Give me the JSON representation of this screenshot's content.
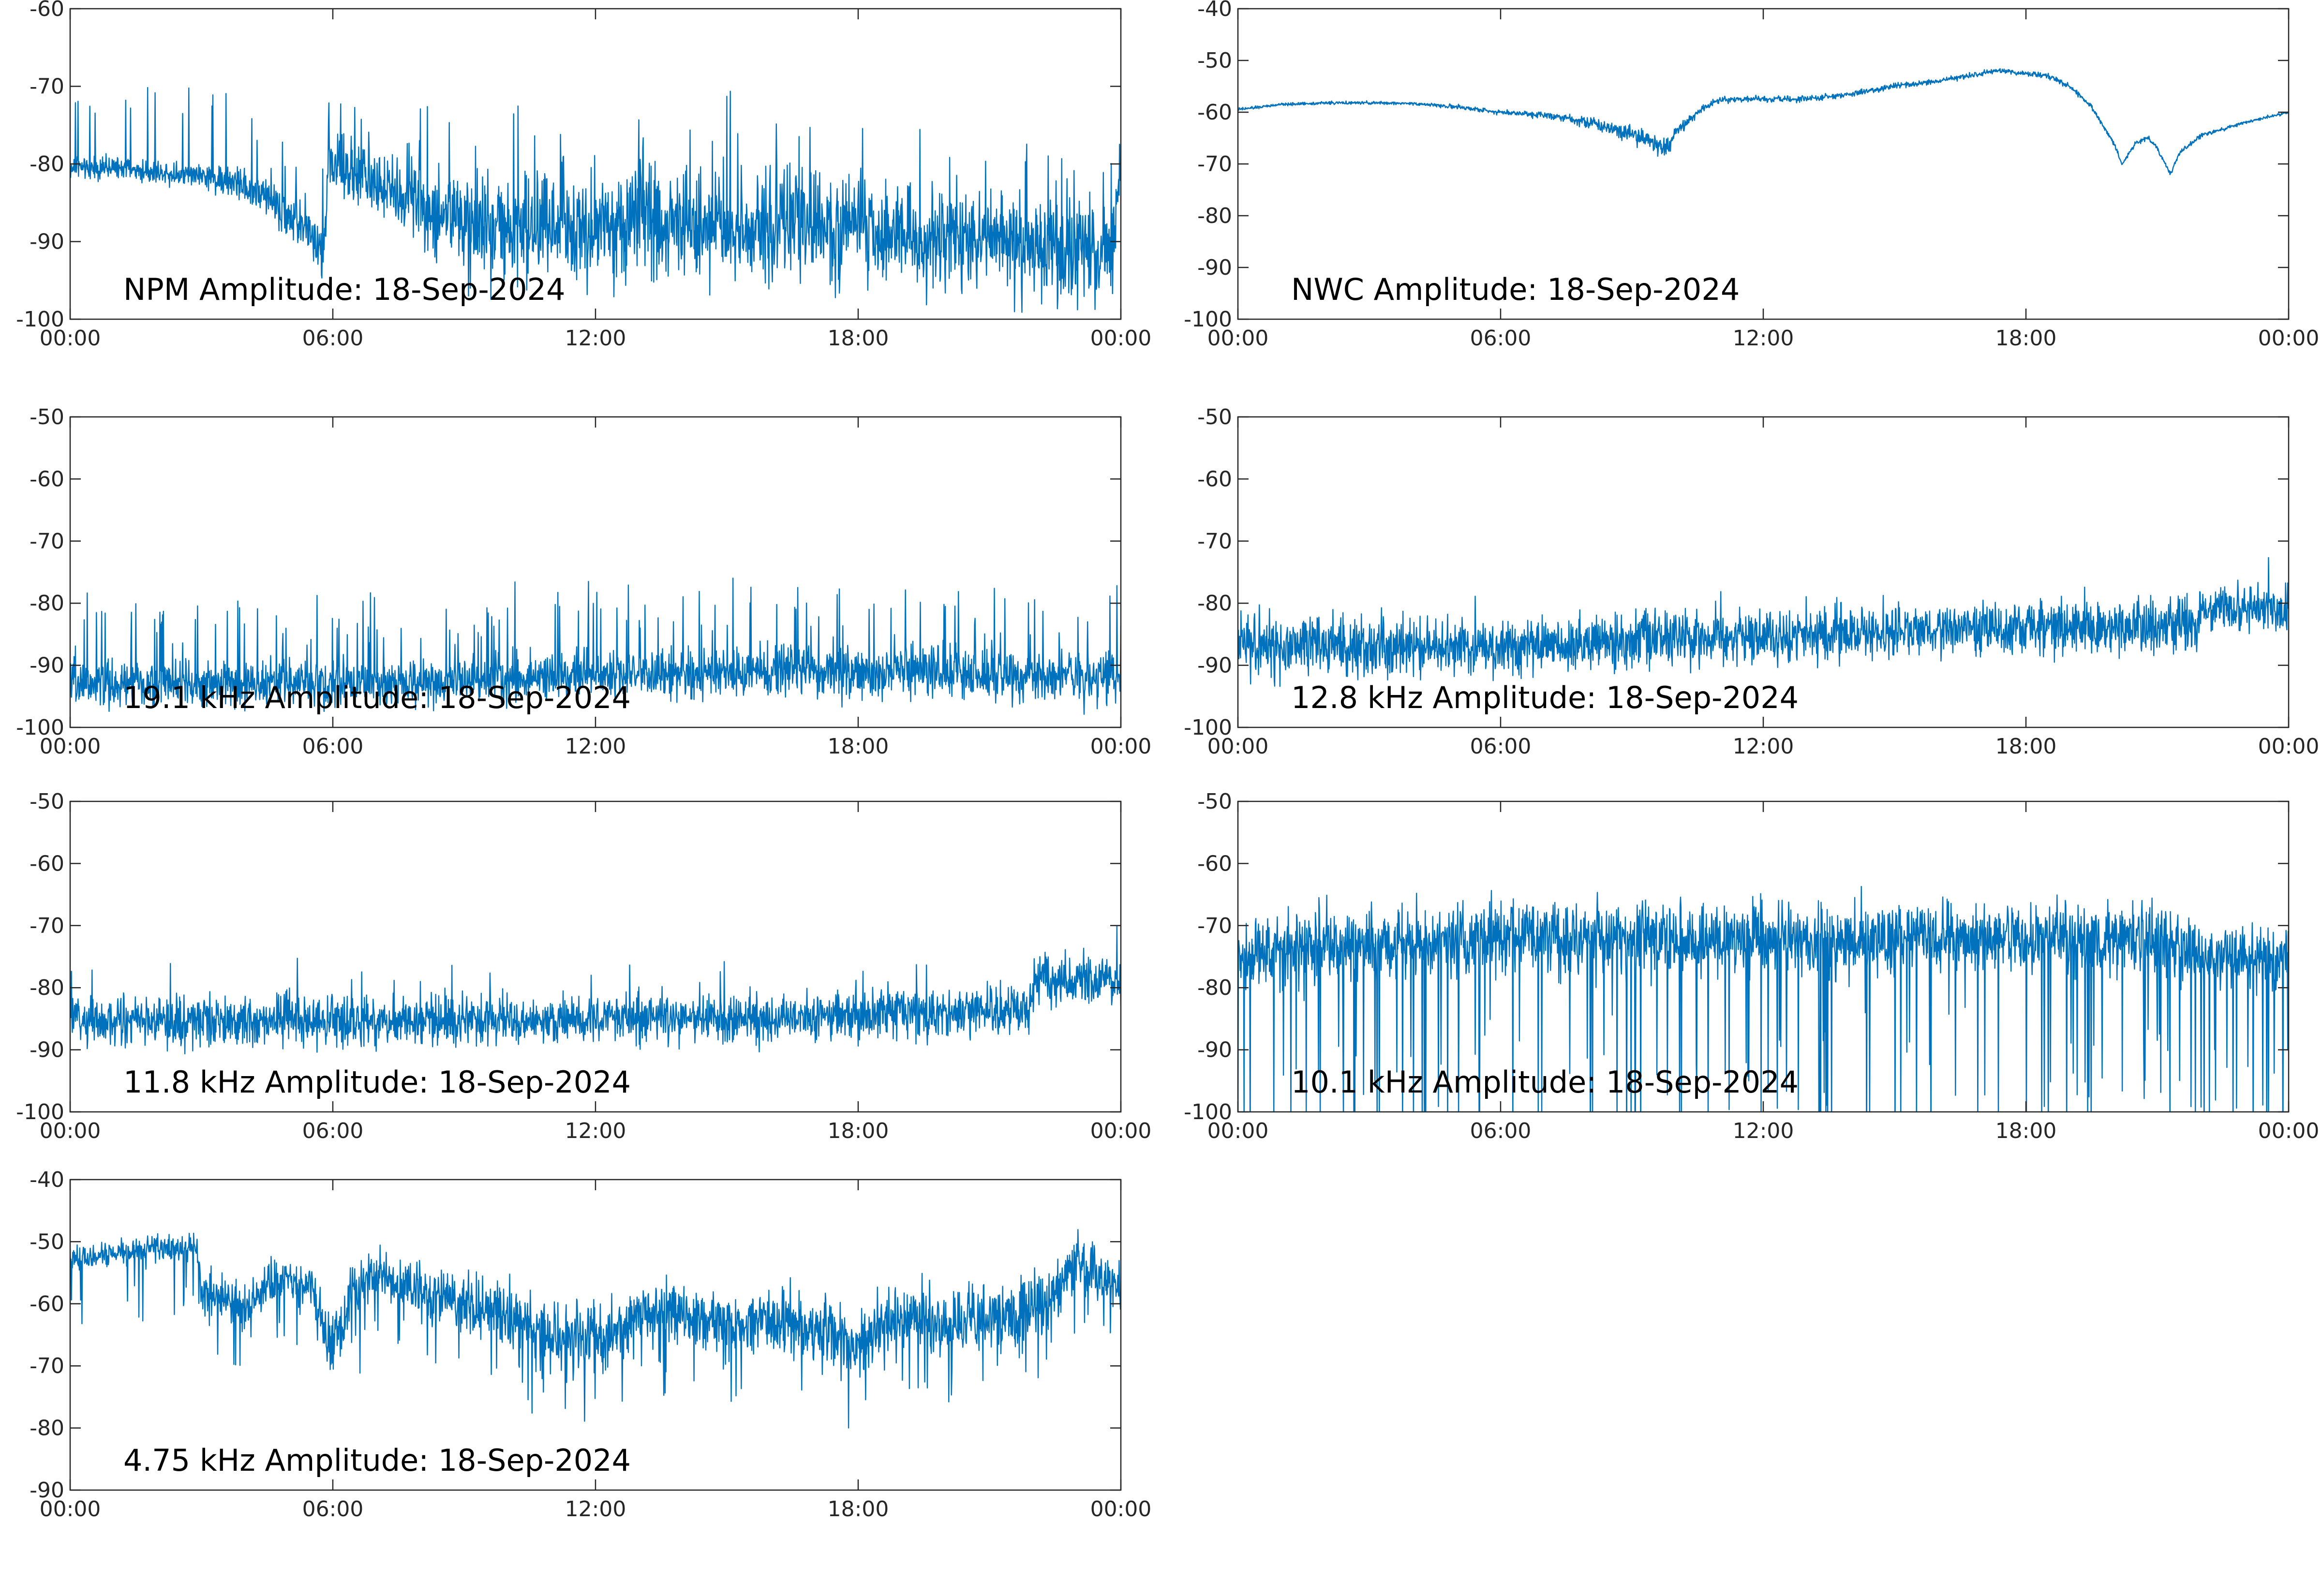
{
  "colors": {
    "trace": "#0072BD",
    "axes": "#262626",
    "background": "#ffffff"
  },
  "chart_data": [
    {
      "type": "line",
      "title": "NPM Amplitude: 18-Sep-2024",
      "xlabel": "",
      "ylabel": "",
      "xlim": [
        0,
        24
      ],
      "ylim": [
        -100,
        -60
      ],
      "xticks": [
        "00:00",
        "06:00",
        "12:00",
        "18:00",
        "00:00"
      ],
      "yticks": [
        "-60",
        "-70",
        "-80",
        "-90",
        "-100"
      ],
      "grid": false,
      "series": [
        {
          "x": [
            0,
            1,
            2,
            3,
            3.5,
            4,
            4.5,
            5,
            5.5,
            5.8,
            5.9,
            6,
            6.5,
            7,
            7.5,
            8,
            8.5,
            9,
            10,
            11,
            12,
            13,
            14,
            15,
            16,
            17,
            18,
            19,
            20,
            21,
            22,
            23,
            23.8,
            24
          ],
          "values": [
            -80.5,
            -80.5,
            -81,
            -81.5,
            -82,
            -83,
            -84.5,
            -86.5,
            -89,
            -91,
            -79,
            -80,
            -81.5,
            -82.5,
            -84,
            -85.5,
            -86.5,
            -87.5,
            -88,
            -88,
            -87.5,
            -88,
            -87.5,
            -88,
            -87.5,
            -88,
            -88.5,
            -89,
            -89.5,
            -90,
            -90.5,
            -91,
            -91,
            -79.5
          ],
          "noise": [
            1,
            1,
            1,
            1,
            1.5,
            1.5,
            2,
            2,
            2.5,
            2.5,
            2.5,
            3,
            3,
            3,
            3,
            3.5,
            4,
            5,
            5,
            5,
            5,
            5,
            5,
            5,
            5,
            5,
            4.5,
            4.5,
            4.5,
            4.5,
            4.5,
            4.5,
            4.5,
            2
          ],
          "spike_rate": 0.03,
          "spike_amp": 10
        }
      ]
    },
    {
      "type": "line",
      "title": "NWC Amplitude: 18-Sep-2024",
      "xlabel": "",
      "ylabel": "",
      "xlim": [
        0,
        24
      ],
      "ylim": [
        -100,
        -40
      ],
      "xticks": [
        "00:00",
        "06:00",
        "12:00",
        "18:00",
        "00:00"
      ],
      "yticks": [
        "-40",
        "-50",
        "-60",
        "-70",
        "-80",
        "-90",
        "-100"
      ],
      "grid": false,
      "series": [
        {
          "x": [
            0,
            1,
            2,
            3,
            4,
            5,
            6,
            7,
            7.5,
            8,
            8.5,
            9,
            9.5,
            9.8,
            10,
            10.5,
            11,
            12,
            13,
            14,
            15,
            16,
            17,
            17.5,
            18,
            18.5,
            19,
            19.5,
            20,
            20.2,
            20.5,
            20.8,
            21,
            21.3,
            21.5,
            22,
            23,
            24
          ],
          "values": [
            -59.5,
            -58.5,
            -58.2,
            -58.2,
            -58.3,
            -59,
            -60,
            -60.5,
            -61,
            -62,
            -63,
            -64,
            -66,
            -67,
            -64,
            -60,
            -57.5,
            -57.5,
            -57.5,
            -56.5,
            -55,
            -54,
            -52.5,
            -52,
            -52.5,
            -53,
            -55,
            -59,
            -66,
            -70,
            -66,
            -65,
            -67,
            -72,
            -68,
            -64.5,
            -62,
            -60
          ],
          "noise": [
            0.2,
            0.2,
            0.2,
            0.2,
            0.2,
            0.3,
            0.3,
            0.5,
            0.6,
            0.8,
            1,
            1.2,
            1.3,
            1.3,
            1,
            0.5,
            0.4,
            0.4,
            0.4,
            0.4,
            0.4,
            0.4,
            0.4,
            0.4,
            0.4,
            0.4,
            0.3,
            0.3,
            0.3,
            0.3,
            0.3,
            0.3,
            0.3,
            0.3,
            0.3,
            0.3,
            0.2,
            0.2
          ],
          "spike_rate": 0,
          "spike_amp": 0
        }
      ]
    },
    {
      "type": "line",
      "title": "19.1 kHz Amplitude: 18-Sep-2024",
      "xlabel": "",
      "ylabel": "",
      "xlim": [
        0,
        24
      ],
      "ylim": [
        -100,
        -50
      ],
      "xticks": [
        "00:00",
        "06:00",
        "12:00",
        "18:00",
        "00:00"
      ],
      "yticks": [
        "-50",
        "-60",
        "-70",
        "-80",
        "-90",
        "-100"
      ],
      "grid": false,
      "series": [
        {
          "x": [
            0,
            6,
            12,
            16,
            18,
            24
          ],
          "values": [
            -93,
            -93,
            -92,
            -91,
            -91,
            -92
          ],
          "noise": [
            2.5,
            2.5,
            2.5,
            3,
            3,
            3
          ],
          "spike_rate": 0.05,
          "spike_amp": 11
        }
      ]
    },
    {
      "type": "line",
      "title": "12.8 kHz Amplitude: 18-Sep-2024",
      "xlabel": "",
      "ylabel": "",
      "xlim": [
        0,
        24
      ],
      "ylim": [
        -100,
        -50
      ],
      "xticks": [
        "00:00",
        "06:00",
        "12:00",
        "18:00",
        "00:00"
      ],
      "yticks": [
        "-50",
        "-60",
        "-70",
        "-80",
        "-90",
        "-100"
      ],
      "grid": false,
      "series": [
        {
          "x": [
            0,
            3,
            6,
            9,
            12,
            15,
            18,
            21.9,
            22,
            24
          ],
          "values": [
            -87,
            -87,
            -87.5,
            -86,
            -85.5,
            -84.5,
            -84,
            -84,
            -80.5,
            -81
          ],
          "noise": [
            3.5,
            3.5,
            3,
            3,
            3,
            3,
            3,
            3,
            2.5,
            2.5
          ],
          "spike_rate": 0.01,
          "spike_amp": 5
        }
      ]
    },
    {
      "type": "line",
      "title": "11.8 kHz Amplitude: 18-Sep-2024",
      "xlabel": "",
      "ylabel": "",
      "xlim": [
        0,
        24
      ],
      "ylim": [
        -100,
        -50
      ],
      "xticks": [
        "00:00",
        "06:00",
        "12:00",
        "18:00",
        "00:00"
      ],
      "yticks": [
        "-50",
        "-60",
        "-70",
        "-80",
        "-90",
        "-100"
      ],
      "grid": false,
      "series": [
        {
          "x": [
            0,
            4,
            8,
            12,
            16,
            20,
            21.9,
            22,
            24
          ],
          "values": [
            -85,
            -85.5,
            -85.5,
            -85,
            -85,
            -84,
            -83.5,
            -79,
            -79
          ],
          "noise": [
            2.8,
            2.8,
            2.8,
            2.8,
            2.8,
            2.8,
            2.8,
            3,
            3
          ],
          "spike_rate": 0.012,
          "spike_amp": 8
        }
      ]
    },
    {
      "type": "line",
      "title": "10.1 kHz Amplitude: 18-Sep-2024",
      "xlabel": "",
      "ylabel": "",
      "xlim": [
        0,
        24
      ],
      "ylim": [
        -100,
        -50
      ],
      "xticks": [
        "00:00",
        "06:00",
        "12:00",
        "18:00",
        "00:00"
      ],
      "yticks": [
        "-50",
        "-60",
        "-70",
        "-80",
        "-90",
        "-100"
      ],
      "grid": false,
      "series": [
        {
          "x": [
            0,
            3,
            6,
            9,
            12,
            15,
            18,
            21,
            22,
            24
          ],
          "values": [
            -74,
            -73,
            -72,
            -72,
            -72,
            -72,
            -72,
            -72,
            -75,
            -75
          ],
          "noise": [
            4,
            4,
            4,
            4,
            4,
            4,
            4,
            4,
            3.5,
            3.5
          ],
          "spike_rate": 0.06,
          "spike_amp": -30
        }
      ]
    },
    {
      "type": "line",
      "title": "4.75 kHz Amplitude: 18-Sep-2024",
      "xlabel": "",
      "ylabel": "",
      "xlim": [
        0,
        24
      ],
      "ylim": [
        -90,
        -40
      ],
      "xticks": [
        "00:00",
        "06:00",
        "12:00",
        "18:00",
        "00:00"
      ],
      "yticks": [
        "-40",
        "-50",
        "-60",
        "-70",
        "-80",
        "-90"
      ],
      "grid": false,
      "series": [
        {
          "x": [
            0,
            1,
            2,
            2.9,
            3,
            4,
            4.5,
            5,
            5.5,
            6,
            6.5,
            7,
            8,
            9,
            10,
            11,
            12,
            13,
            14,
            15,
            16,
            17,
            18,
            19,
            20,
            21,
            22,
            22.5,
            23,
            24
          ],
          "values": [
            -53,
            -52,
            -51,
            -51,
            -58,
            -61,
            -57,
            -56,
            -58,
            -67,
            -58,
            -55,
            -58,
            -60,
            -62,
            -65,
            -66,
            -62,
            -62,
            -64,
            -62,
            -64,
            -66,
            -62,
            -63,
            -62,
            -61,
            -58,
            -53,
            -58
          ],
          "noise": [
            1.5,
            1.5,
            1.5,
            1.5,
            2.5,
            2.5,
            2.5,
            2.5,
            3,
            4,
            3,
            2.5,
            3,
            3.5,
            4,
            4,
            4,
            4,
            3.5,
            3.5,
            3.5,
            3.5,
            3.5,
            3.5,
            3.5,
            3.5,
            3.5,
            3,
            3,
            3
          ],
          "spike_rate": 0.04,
          "spike_amp": -10
        }
      ]
    }
  ]
}
